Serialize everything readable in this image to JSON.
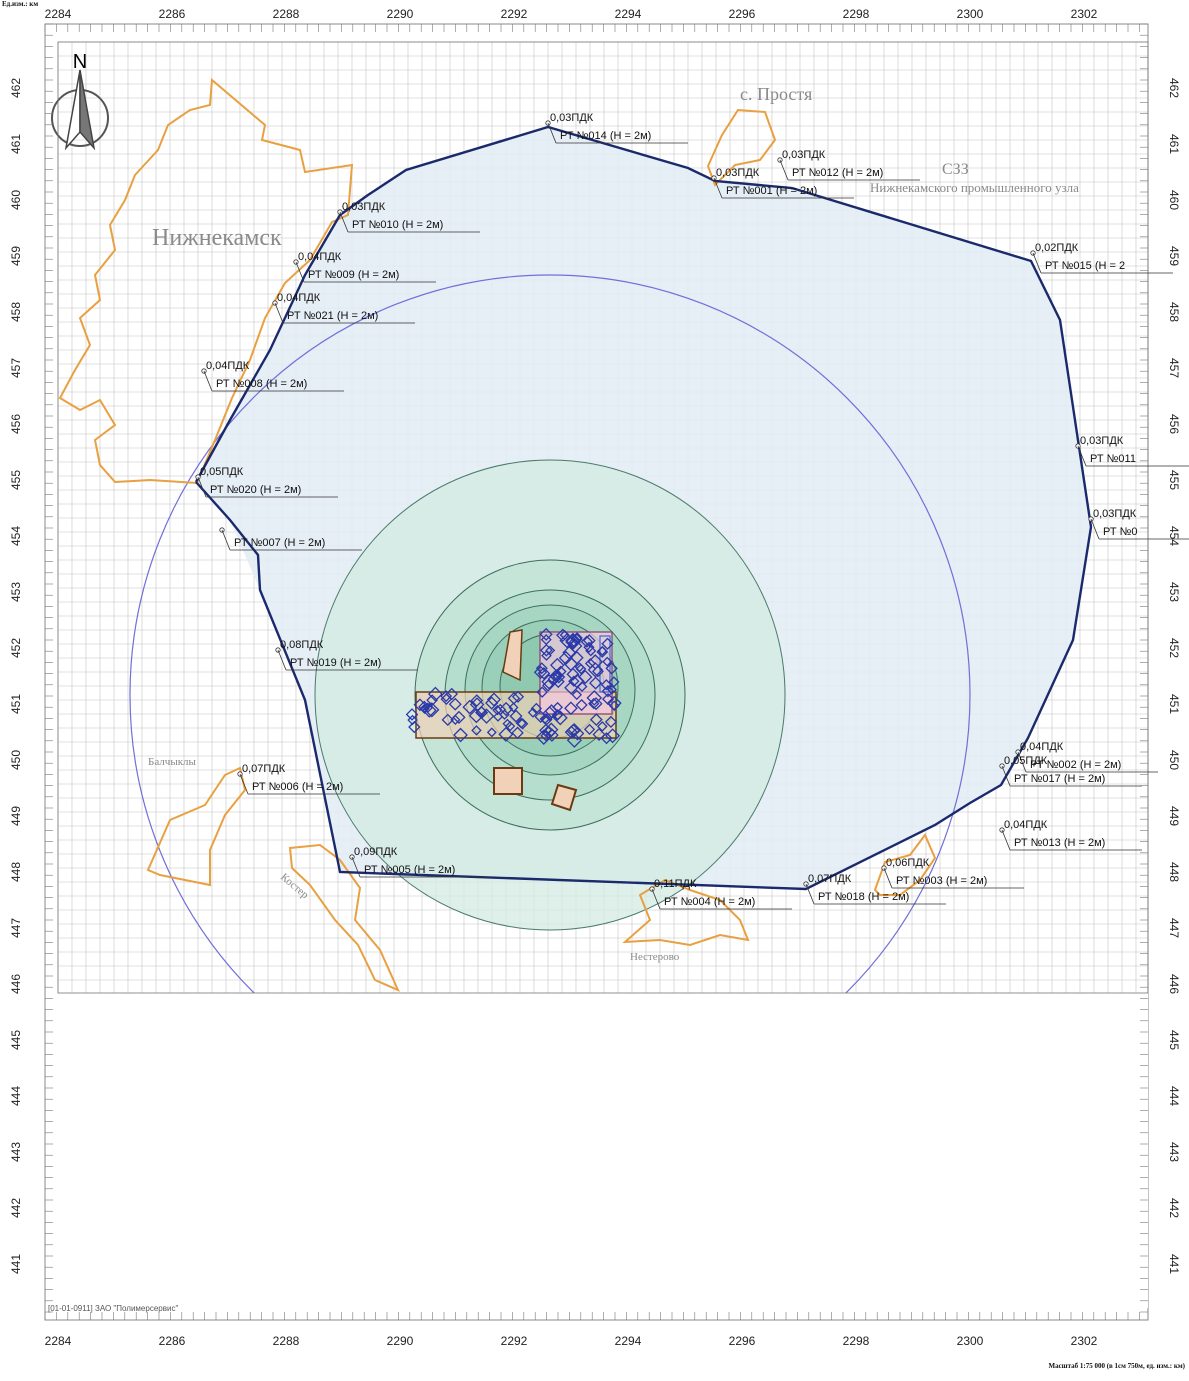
{
  "map": {
    "x_ticks": [
      "2284",
      "2286",
      "2288",
      "2290",
      "2292",
      "2294",
      "2296",
      "2298",
      "2300",
      "2302"
    ],
    "y_ticks": [
      "462",
      "461",
      "460",
      "459",
      "458",
      "457",
      "456",
      "455",
      "454",
      "453",
      "452",
      "451",
      "450",
      "449",
      "448",
      "447",
      "446",
      "445",
      "444",
      "443",
      "442",
      "441"
    ],
    "north_label": "N",
    "places": {
      "nizhnekamsk": "Нижнекамск",
      "prostya": "с. Простя",
      "szz": "СЗЗ",
      "industrial": "Нижнекамского промышленного узла",
      "north_w": "Балчыклы",
      "southw": "Костер",
      "south": "Нестерово"
    },
    "points": [
      {
        "id": "014",
        "conc": "0,03ПДК",
        "label": "РТ №014 (Н = 2м)"
      },
      {
        "id": "012",
        "conc": "0,03ПДК",
        "label": "РТ №012 (Н = 2м)"
      },
      {
        "id": "001",
        "conc": "0,03ПДК",
        "label": "РТ №001 (Н = 2м)"
      },
      {
        "id": "010",
        "conc": "0,03ПДК",
        "label": "РТ №010 (Н = 2м)"
      },
      {
        "id": "009",
        "conc": "0,04ПДК",
        "label": "РТ №009 (Н = 2м)"
      },
      {
        "id": "021",
        "conc": "0,04ПДК",
        "label": "РТ №021 (Н = 2м)"
      },
      {
        "id": "015",
        "conc": "0,02ПДК",
        "label": "РТ №015 (Н = 2"
      },
      {
        "id": "008",
        "conc": "0,04ПДК",
        "label": "РТ №008 (Н = 2м)"
      },
      {
        "id": "011",
        "conc": "0,03ПДК",
        "label": "РТ №011"
      },
      {
        "id": "0x",
        "conc": "0,03ПДК",
        "label": "РТ №0"
      },
      {
        "id": "020",
        "conc": "0,05ПДК",
        "label": "РТ №020 (Н = 2м)"
      },
      {
        "id": "007",
        "conc": "",
        "label": "РТ №007 (Н = 2м)"
      },
      {
        "id": "019",
        "conc": "0,08ПДК",
        "label": "РТ №019 (Н = 2м)"
      },
      {
        "id": "006",
        "conc": "0,07ПДК",
        "label": "РТ №006 (Н = 2м)"
      },
      {
        "id": "002",
        "conc": "0,04ПДК",
        "label": "РТ №002 (Н = 2м)"
      },
      {
        "id": "017",
        "conc": "0,05ПДК",
        "label": "РТ №017 (Н = 2м)"
      },
      {
        "id": "013",
        "conc": "0,04ПДК",
        "label": "РТ №013 (Н = 2м)"
      },
      {
        "id": "005",
        "conc": "0,09ПДК",
        "label": "РТ №005 (Н = 2м)"
      },
      {
        "id": "003",
        "conc": "0,06ПДК",
        "label": "РТ №003 (Н = 2м)"
      },
      {
        "id": "018",
        "conc": "0,07ПДК",
        "label": "РТ №018 (Н = 2м)"
      },
      {
        "id": "004",
        "conc": "0,11ПДК",
        "label": "РТ №004 (Н = 2м)"
      }
    ],
    "footer_note": "[01-01-0911] ЗАО \"Полимерсервис\"",
    "scale_note": "Масштаб 1:75 000 (в 1см 750м, ед. изм.: км)",
    "top_note": "Ед.изм.: км"
  },
  "colors": {
    "grid": "#b8b8b8",
    "polygon": "#1a2a6c",
    "settlement": "#e8a040",
    "circle": "#6a6ad0",
    "fill_light": "#e6eef8",
    "fill_green": "#d4ece4",
    "sources": "#2a3aa8"
  }
}
